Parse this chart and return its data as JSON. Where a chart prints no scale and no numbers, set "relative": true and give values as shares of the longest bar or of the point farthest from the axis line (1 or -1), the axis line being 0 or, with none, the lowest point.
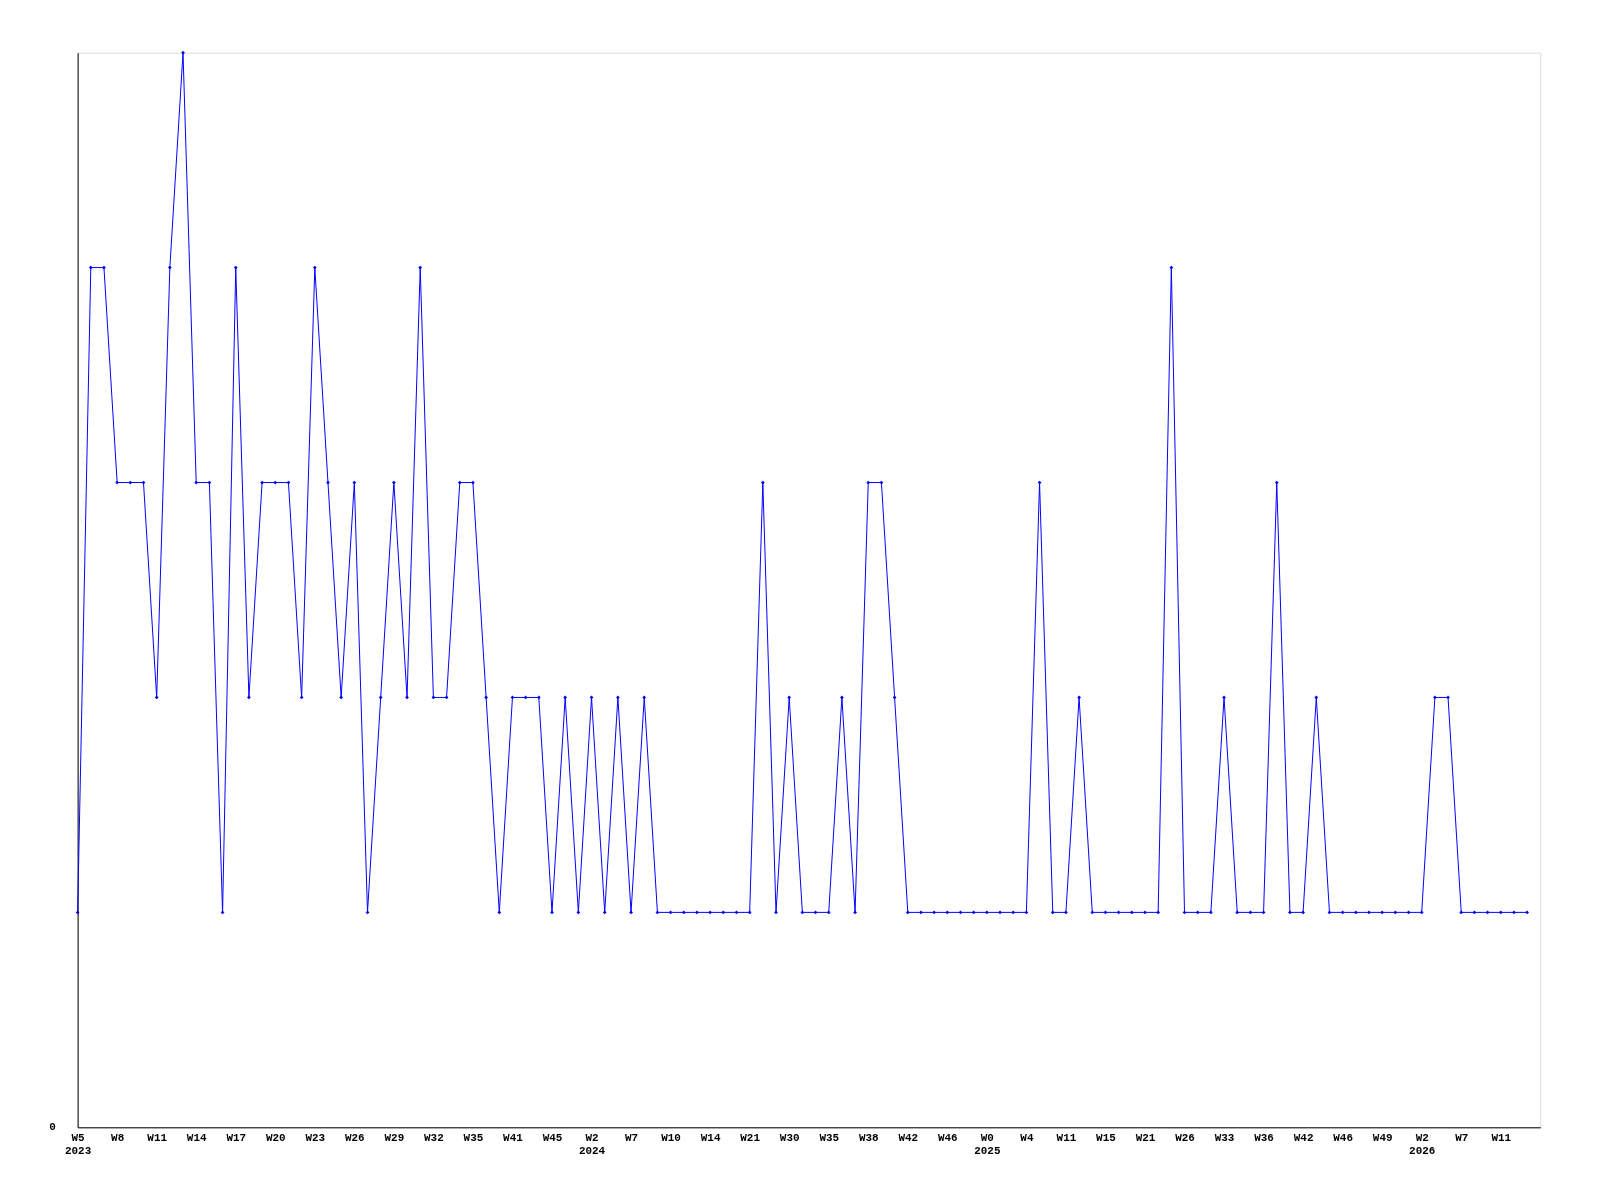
{
  "chart_data": {
    "type": "line",
    "relative": true,
    "marker": "diamond",
    "line_style": "solid",
    "grid": false,
    "categories": [
      "W5\n2023",
      null,
      null,
      "W8",
      null,
      null,
      "W11",
      null,
      null,
      "W14",
      null,
      null,
      "W17",
      null,
      null,
      "W20",
      null,
      null,
      "W23",
      null,
      null,
      "W26",
      null,
      null,
      "W29",
      null,
      null,
      "W32",
      null,
      null,
      "W35",
      null,
      null,
      "W41",
      null,
      null,
      "W45",
      null,
      null,
      "W2\n2024",
      null,
      null,
      "W7",
      null,
      null,
      "W10",
      null,
      null,
      "W14",
      null,
      null,
      "W21",
      null,
      null,
      "W30",
      null,
      null,
      "W35",
      null,
      null,
      "W38",
      null,
      null,
      "W42",
      null,
      null,
      "W46",
      null,
      null,
      "W0\n2025",
      null,
      null,
      "W4",
      null,
      null,
      "W11",
      null,
      null,
      "W15",
      null,
      null,
      "W21",
      null,
      null,
      "W26",
      null,
      null,
      "W33",
      null,
      null,
      "W36",
      null,
      null,
      "W42",
      null,
      null,
      "W46",
      null,
      null,
      "W49",
      null,
      null,
      "W2\n2026",
      null,
      null,
      "W7",
      null,
      null,
      "W11",
      null,
      null
    ],
    "series": [
      {
        "color": "#0000ff",
        "values": [
          0.2,
          0.8,
          0.8,
          0.6,
          0.6,
          0.6,
          0.4,
          0.8,
          1,
          0.6,
          0.6,
          0.2,
          0.8,
          0.4,
          0.6,
          0.6,
          0.6,
          0.4,
          0.8,
          0.6,
          0.4,
          0.6,
          0.2,
          0.4,
          0.6,
          0.4,
          0.8,
          0.4,
          0.4,
          0.6,
          0.6,
          0.4,
          0.2,
          0.4,
          0.4,
          0.4,
          0.2,
          0.4,
          0.2,
          0.4,
          0.2,
          0.4,
          0.2,
          0.4,
          0.2,
          0.2,
          0.2,
          0.2,
          0.2,
          0.2,
          0.2,
          0.2,
          0.6,
          0.2,
          0.4,
          0.2,
          0.2,
          0.2,
          0.4,
          0.2,
          0.6,
          0.6,
          0.4,
          0.2,
          0.2,
          0.2,
          0.2,
          0.2,
          0.2,
          0.2,
          0.2,
          0.2,
          0.2,
          0.6,
          0.2,
          0.2,
          0.4,
          0.2,
          0.2,
          0.2,
          0.2,
          0.2,
          0.2,
          0.8,
          0.2,
          0.2,
          0.2,
          0.4,
          0.2,
          0.2,
          0.2,
          0.6,
          0.2,
          0.2,
          0.4,
          0.2,
          0.2,
          0.2,
          0.2,
          0.2,
          0.2,
          0.2,
          0.2,
          0.4,
          0.4,
          0.2,
          0.2,
          0.2,
          0.2,
          0.2,
          0.2
        ]
      }
    ],
    "annotations": [
      "0"
    ]
  }
}
